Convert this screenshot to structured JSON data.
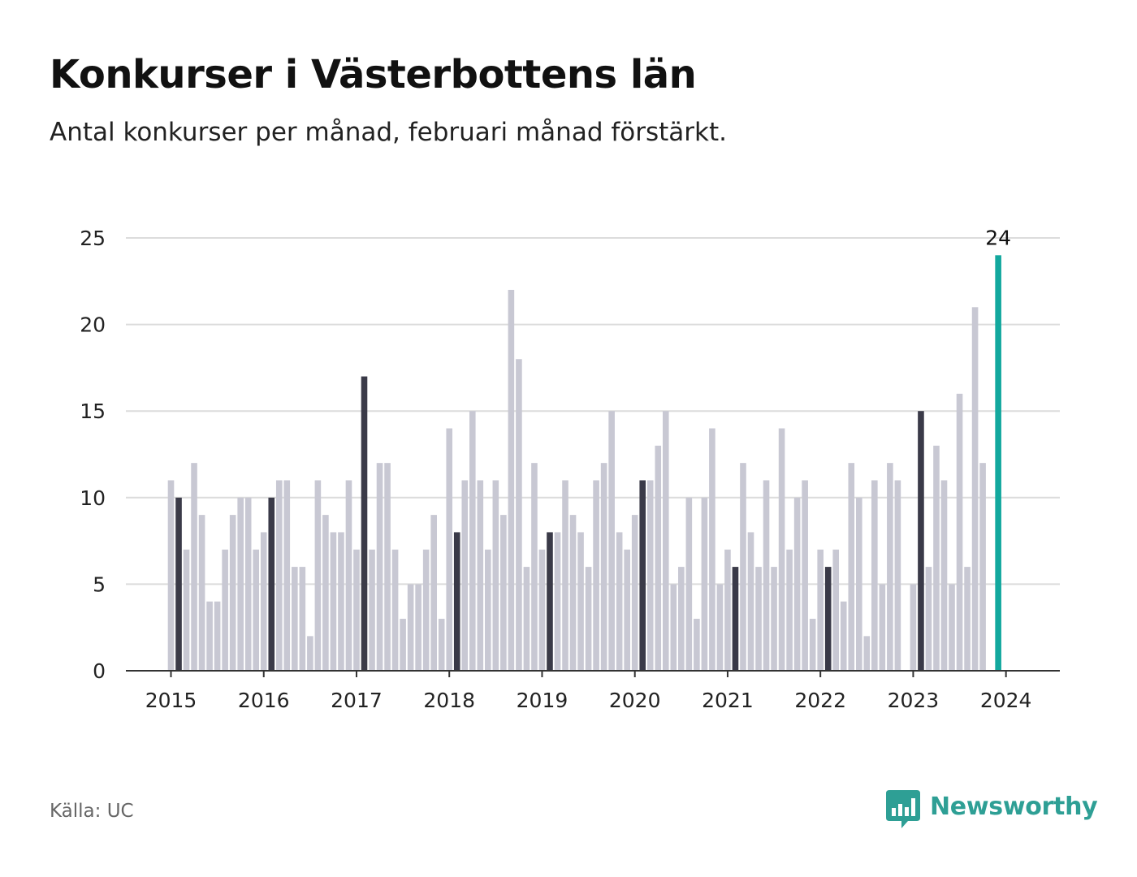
{
  "title": "Konkurser i Västerbottens län",
  "subtitle": "Antal konkurser per månad, februari månad förstärkt.",
  "source": {
    "label": "Källa:",
    "value": "UC"
  },
  "brand": {
    "name": "Newsworthy",
    "icon": "newsworthy-logo-icon",
    "color": "#2e9f95"
  },
  "chart_data": {
    "type": "bar",
    "title": "Konkurser i Västerbottens län",
    "subtitle": "Antal konkurser per månad, februari månad förstärkt.",
    "xlabel": "",
    "ylabel": "",
    "ylim": [
      0,
      25
    ],
    "y_ticks": [
      0,
      5,
      10,
      15,
      20,
      25
    ],
    "x_tick_labels": [
      "2015",
      "2016",
      "2017",
      "2018",
      "2019",
      "2020",
      "2021",
      "2022",
      "2023",
      "2024"
    ],
    "grid": true,
    "colors": {
      "default": "#c8c8d3",
      "february": "#3a3a48",
      "latest": "#13a89e"
    },
    "start_month": "2015-01",
    "months_per_year": 12,
    "highlight": "february",
    "highlight_last": true,
    "last_label": "24",
    "values": [
      11,
      10,
      7,
      12,
      9,
      4,
      4,
      7,
      9,
      10,
      10,
      7,
      8,
      10,
      11,
      11,
      6,
      6,
      2,
      11,
      9,
      8,
      8,
      11,
      7,
      17,
      7,
      12,
      12,
      7,
      3,
      5,
      5,
      7,
      9,
      3,
      14,
      8,
      11,
      15,
      11,
      7,
      11,
      9,
      22,
      18,
      6,
      12,
      7,
      8,
      8,
      11,
      9,
      8,
      6,
      11,
      12,
      15,
      8,
      7,
      9,
      11,
      11,
      13,
      15,
      5,
      6,
      10,
      3,
      10,
      14,
      5,
      7,
      6,
      12,
      8,
      6,
      11,
      6,
      14,
      7,
      10,
      11,
      3,
      7,
      6,
      7,
      4,
      12,
      10,
      2,
      11,
      5,
      12,
      11,
      0,
      5,
      15,
      6,
      13,
      11,
      5,
      16,
      6,
      21,
      12,
      0,
      24
    ]
  }
}
